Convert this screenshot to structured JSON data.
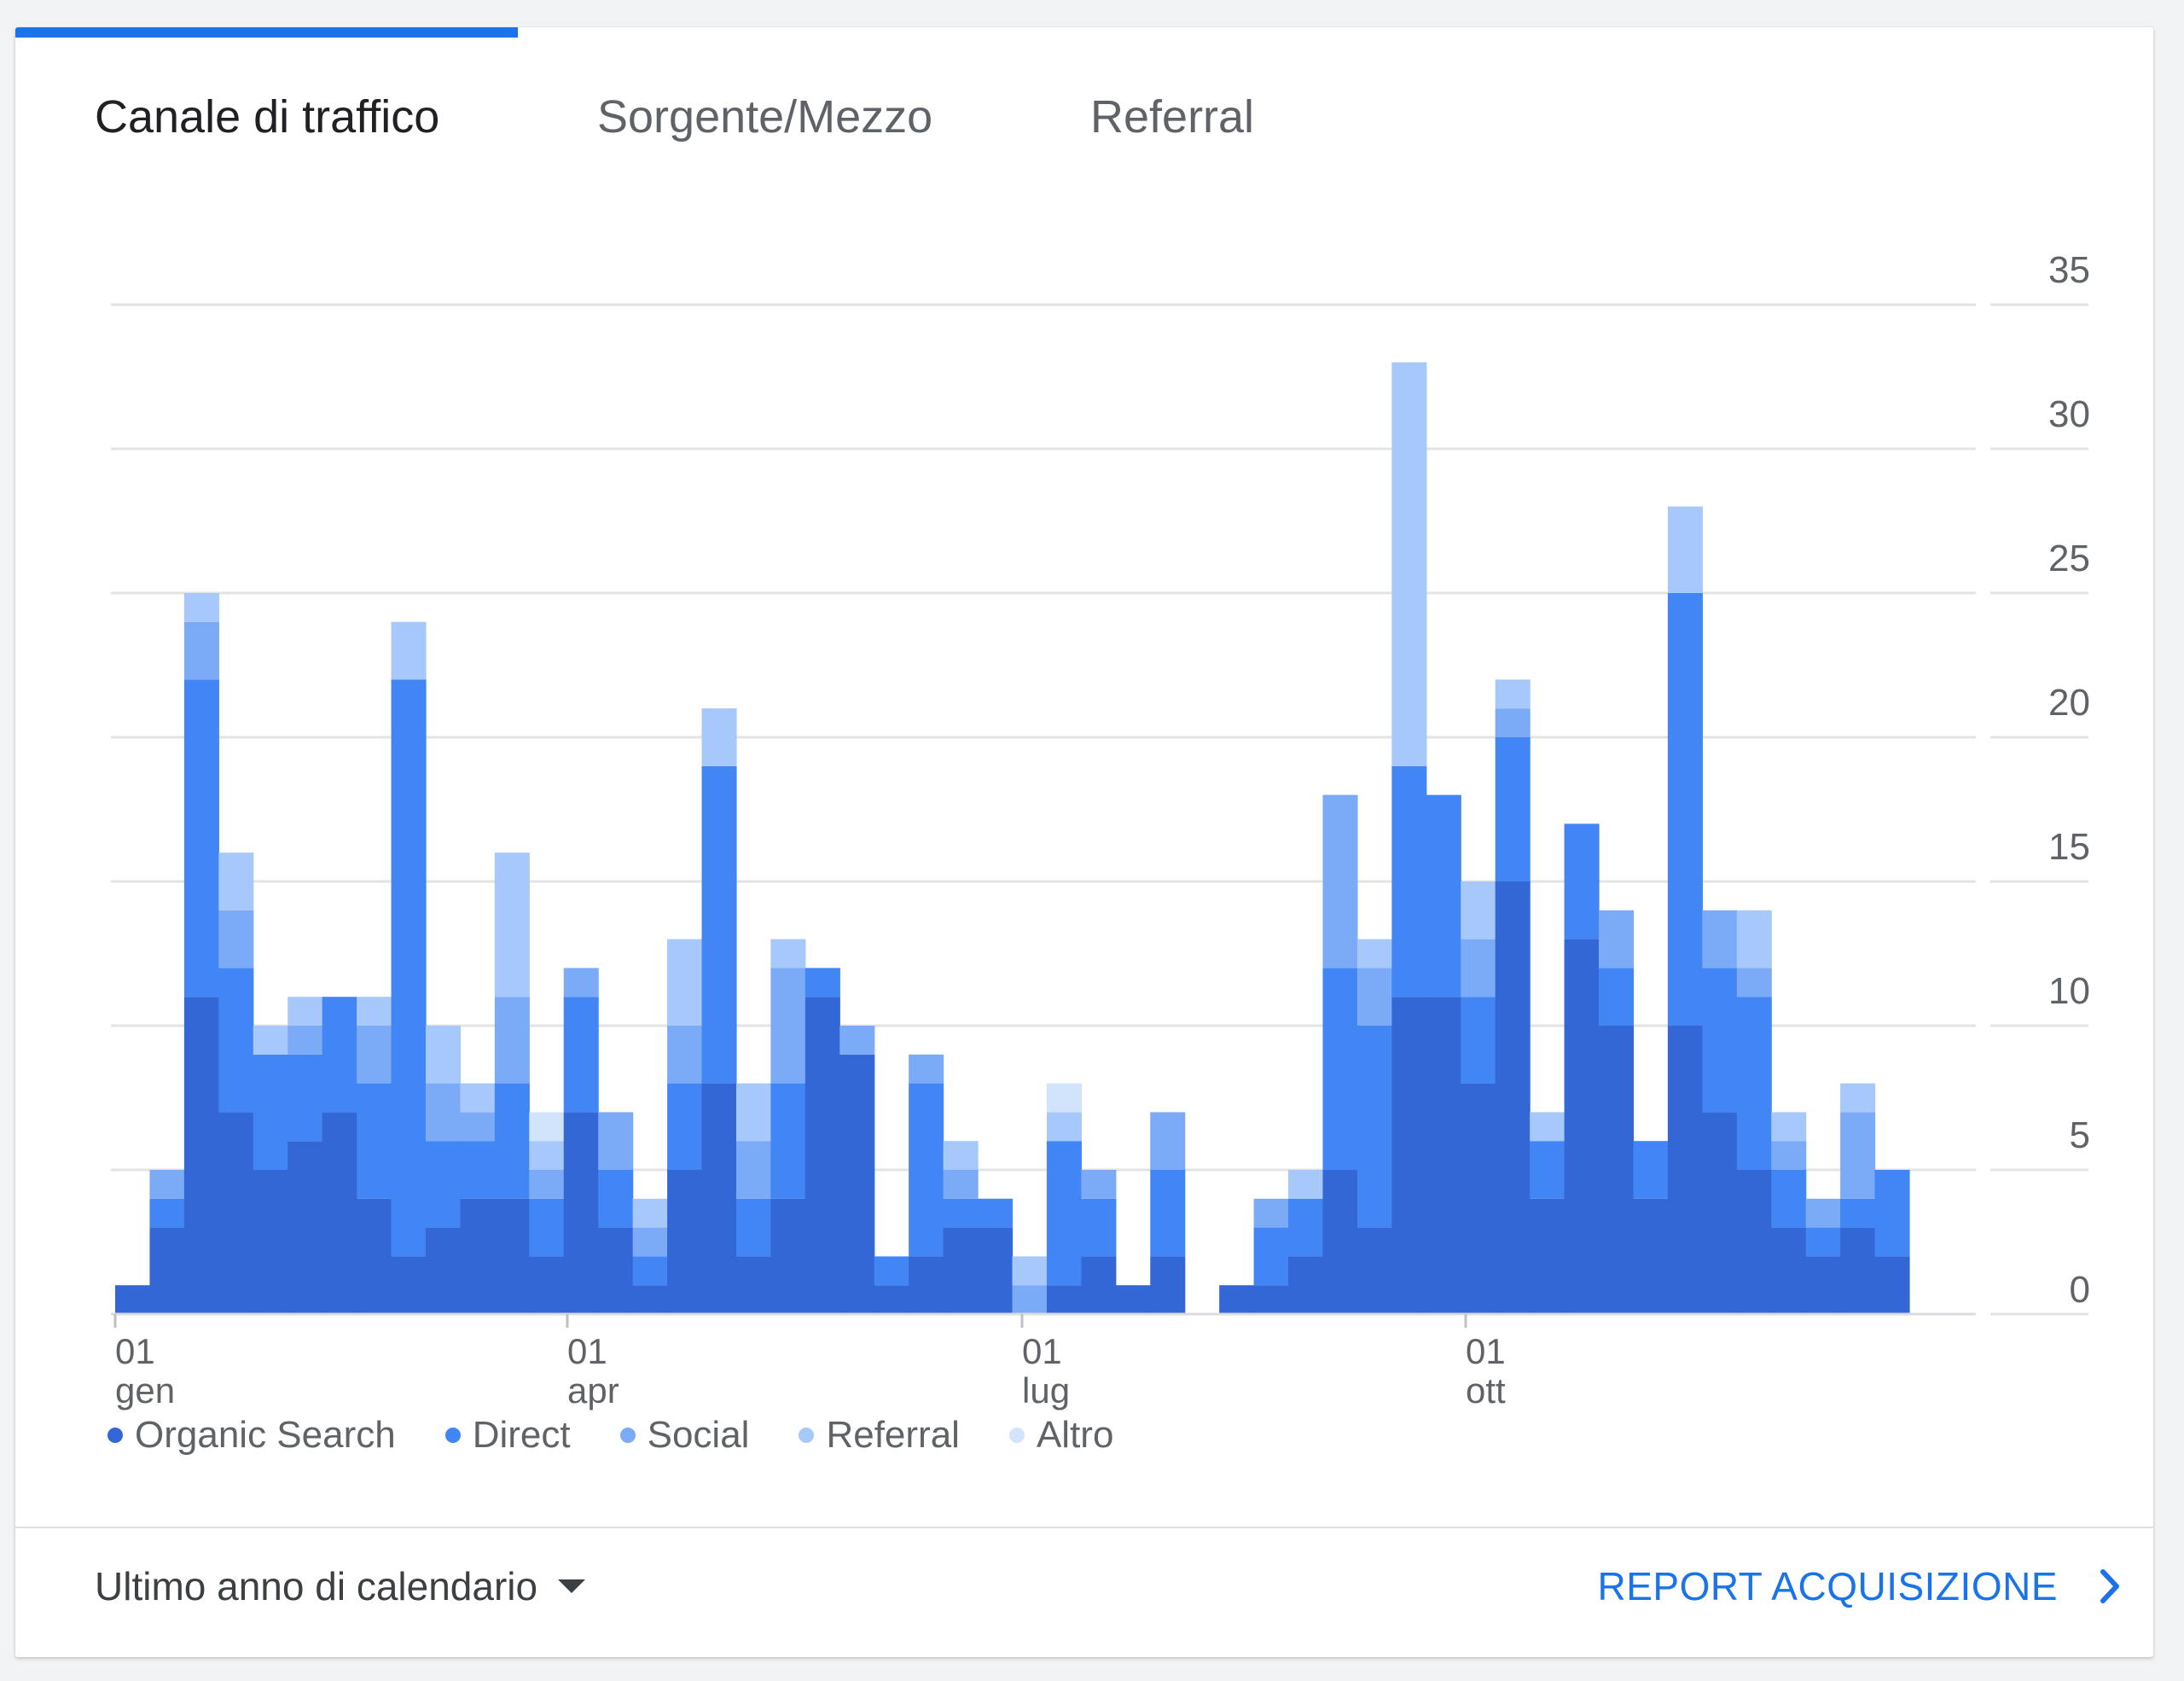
{
  "tabs": [
    {
      "label": "Canale di traffico",
      "active": true
    },
    {
      "label": "Sorgente/Mezzo",
      "active": false
    },
    {
      "label": "Referral",
      "active": false
    }
  ],
  "colors": {
    "accent": "#1a73e8",
    "organic_search": "#3367d6",
    "direct": "#4285f4",
    "social": "#7baaf7",
    "referral": "#a6c8fa",
    "altro": "#d2e3fc"
  },
  "chart_data": {
    "type": "bar",
    "stacked": true,
    "grid": true,
    "ylim": [
      0,
      35
    ],
    "yticks": [
      "0",
      "5",
      "10",
      "15",
      "20",
      "25",
      "30",
      "35"
    ],
    "xtick_labels": [
      {
        "day": "01",
        "month": "gen"
      },
      {
        "day": "01",
        "month": "apr"
      },
      {
        "day": "01",
        "month": "lug"
      },
      {
        "day": "01",
        "month": "ott"
      }
    ],
    "legend_position": "bottom-left",
    "x": [
      "01 gen",
      "08 gen",
      "15 gen",
      "22 gen",
      "29 gen",
      "05 feb",
      "12 feb",
      "19 feb",
      "26 feb",
      "05 mar",
      "12 mar",
      "19 mar",
      "26 mar",
      "02 apr",
      "09 apr",
      "16 apr",
      "23 apr",
      "30 apr",
      "07 mag",
      "14 mag",
      "21 mag",
      "28 mag",
      "04 giu",
      "11 giu",
      "18 giu",
      "25 giu",
      "02 lug",
      "09 lug",
      "16 lug",
      "23 lug",
      "30 lug",
      "06 ago",
      "13 ago",
      "20 ago",
      "27 ago",
      "03 set",
      "10 set",
      "17 set",
      "24 set",
      "01 ott",
      "08 ott",
      "15 ott",
      "22 ott",
      "29 ott",
      "05 nov",
      "12 nov",
      "19 nov",
      "26 nov",
      "03 dic",
      "10 dic",
      "17 dic",
      "24 dic",
      "31 dic"
    ],
    "series": [
      {
        "name": "Organic Search",
        "values": [
          0,
          1,
          3,
          11,
          7,
          5,
          6,
          7,
          4,
          2,
          3,
          4,
          4,
          2,
          7,
          3,
          1,
          5,
          8,
          2,
          4,
          11,
          9,
          1,
          2,
          3,
          3,
          0,
          1,
          2,
          1,
          2,
          0,
          1,
          1,
          2,
          5,
          3,
          11,
          11,
          8,
          15,
          4,
          13,
          10,
          4,
          10,
          7,
          5,
          3,
          2,
          3,
          2
        ]
      },
      {
        "name": "Direct",
        "values": [
          0,
          0,
          1,
          11,
          5,
          4,
          3,
          4,
          4,
          20,
          3,
          2,
          4,
          2,
          4,
          2,
          1,
          3,
          11,
          2,
          4,
          1,
          0,
          1,
          6,
          1,
          1,
          0,
          5,
          2,
          0,
          3,
          0,
          0,
          2,
          2,
          7,
          7,
          8,
          7,
          3,
          5,
          2,
          4,
          2,
          2,
          15,
          5,
          6,
          2,
          1,
          1,
          3
        ]
      },
      {
        "name": "Social",
        "values": [
          0,
          0,
          1,
          2,
          2,
          0,
          1,
          0,
          2,
          0,
          2,
          1,
          3,
          1,
          1,
          2,
          1,
          2,
          0,
          2,
          4,
          0,
          1,
          0,
          1,
          1,
          0,
          1,
          0,
          1,
          0,
          2,
          0,
          0,
          1,
          0,
          6,
          2,
          0,
          0,
          2,
          1,
          0,
          0,
          2,
          0,
          0,
          2,
          1,
          1,
          1,
          3,
          0
        ]
      },
      {
        "name": "Referral",
        "values": [
          0,
          0,
          0,
          1,
          2,
          1,
          1,
          0,
          1,
          2,
          2,
          1,
          5,
          1,
          0,
          0,
          1,
          3,
          2,
          2,
          1,
          0,
          0,
          0,
          0,
          1,
          0,
          1,
          1,
          0,
          0,
          0,
          0,
          0,
          0,
          1,
          0,
          1,
          14,
          0,
          2,
          1,
          1,
          0,
          0,
          0,
          3,
          0,
          2,
          1,
          0,
          1,
          0
        ]
      },
      {
        "name": "Altro",
        "values": [
          0,
          0,
          0,
          0,
          0,
          0,
          0,
          0,
          0,
          0,
          0,
          0,
          0,
          1,
          0,
          0,
          0,
          0,
          0,
          0,
          0,
          0,
          0,
          0,
          0,
          0,
          0,
          0,
          1,
          0,
          0,
          0,
          0,
          0,
          0,
          0,
          0,
          0,
          0,
          0,
          0,
          0,
          0,
          0,
          0,
          0,
          0,
          0,
          0,
          0,
          0,
          0,
          0
        ]
      }
    ]
  },
  "footer": {
    "date_range": "Ultimo anno di calendario",
    "report_link": "REPORT ACQUISIZIONE"
  }
}
